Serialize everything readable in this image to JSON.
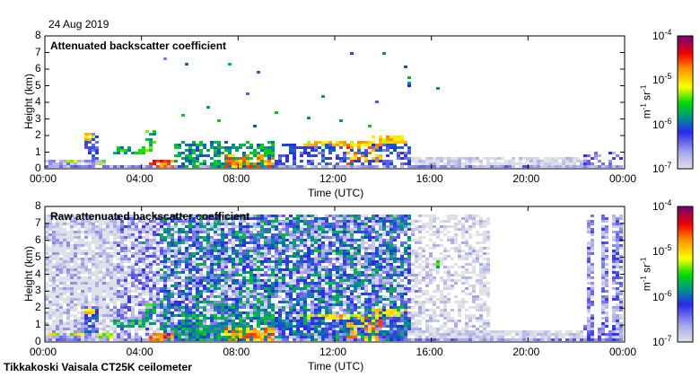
{
  "date": "24 Aug 2019",
  "footer": "Tikkakoski Vaisala CT25K ceilometer",
  "chart_data": [
    {
      "type": "heatmap",
      "title": "Attenuated backscatter coefficient",
      "xlabel": "Time (UTC)",
      "ylabel": "Height (km)",
      "xlim": [
        0,
        24
      ],
      "ylim": [
        0,
        8
      ],
      "xticks": [
        "00:00",
        "04:00",
        "08:00",
        "12:00",
        "16:00",
        "20:00",
        "00:00"
      ],
      "yticks": [
        "0",
        "1",
        "2",
        "3",
        "4",
        "5",
        "6",
        "7",
        "8"
      ],
      "colorbar": {
        "label": "m-1 sr-1",
        "ticks": [
          "10-7",
          "10-6",
          "10-5",
          "10-4"
        ],
        "range_log10": [
          -7,
          -4
        ]
      },
      "regions": [
        {
          "t": [
            0,
            2.6
          ],
          "h": [
            0,
            0.55
          ],
          "log10": -6.7,
          "fill": 0.9
        },
        {
          "t": [
            0,
            1.6
          ],
          "h": [
            0.4,
            0.6
          ],
          "log10": -5.2,
          "fill": 0.6
        },
        {
          "t": [
            1.65,
            2.2
          ],
          "h": [
            0.5,
            2.1
          ],
          "log10": -6.2,
          "fill": 0.6
        },
        {
          "t": [
            1.7,
            2.1
          ],
          "h": [
            1.7,
            2.1
          ],
          "log10": -5.0,
          "fill": 0.6
        },
        {
          "t": [
            2.2,
            2.8
          ],
          "h": [
            0.2,
            0.6
          ],
          "log10": -5.2,
          "fill": 0.5
        },
        {
          "t": [
            2.8,
            4.2
          ],
          "h": [
            0.8,
            1.4
          ],
          "log10": -5.7,
          "fill": 0.7
        },
        {
          "t": [
            4.3,
            5.4
          ],
          "h": [
            0,
            0.6
          ],
          "log10": -4.6,
          "fill": 0.8
        },
        {
          "t": [
            4.2,
            4.6
          ],
          "h": [
            1.0,
            2.3
          ],
          "log10": -5.6,
          "fill": 0.6
        },
        {
          "t": [
            5.3,
            9.5
          ],
          "h": [
            0.1,
            1.6
          ],
          "log10": -5.8,
          "fill": 0.55
        },
        {
          "t": [
            7.5,
            9.5
          ],
          "h": [
            0,
            0.8
          ],
          "log10": -4.8,
          "fill": 0.6
        },
        {
          "t": [
            9.5,
            15.2
          ],
          "h": [
            0.2,
            1.5
          ],
          "log10": -6.2,
          "fill": 0.55
        },
        {
          "t": [
            10.5,
            13.5
          ],
          "h": [
            1.3,
            1.7
          ],
          "log10": -5.0,
          "fill": 0.7
        },
        {
          "t": [
            13.5,
            15.0
          ],
          "h": [
            1.5,
            2.0
          ],
          "log10": -5.0,
          "fill": 0.7
        },
        {
          "t": [
            12.5,
            14.0
          ],
          "h": [
            0,
            1.5
          ],
          "log10": -4.8,
          "fill": 0.35
        },
        {
          "t": [
            15.2,
            22.5
          ],
          "h": [
            0,
            0.7
          ],
          "log10": -6.95,
          "fill": 0.85
        },
        {
          "t": [
            0,
            24
          ],
          "h": [
            0,
            0.25
          ],
          "log10": -6.6,
          "fill": 0.9
        },
        {
          "t": [
            22.3,
            24
          ],
          "h": [
            0,
            1.0
          ],
          "log10": -6.4,
          "fill": 0.4
        },
        {
          "t": [
            16.2,
            16.4
          ],
          "h": [
            4.4,
            5.0
          ],
          "log10": -5.6,
          "fill": 0.8
        },
        {
          "t": [
            15.0,
            15.2
          ],
          "h": [
            5.0,
            5.8
          ],
          "log10": -5.9,
          "fill": 0.5
        }
      ],
      "sparse": {
        "t": [
          3,
          16
        ],
        "h": [
          2,
          7.2
        ],
        "log10": -6.0,
        "density": 0.004
      }
    },
    {
      "type": "heatmap",
      "title": "Raw attenuated backscatter coefficient",
      "xlabel": "Time (UTC)",
      "ylabel": "Height (km)",
      "xlim": [
        0,
        24
      ],
      "ylim": [
        0,
        8
      ],
      "xticks": [
        "00:00",
        "04:00",
        "08:00",
        "12:00",
        "16:00",
        "20:00",
        "00:00"
      ],
      "yticks": [
        "0",
        "1",
        "2",
        "3",
        "4",
        "5",
        "6",
        "7",
        "8"
      ],
      "colorbar": {
        "label": "m-1 sr-1",
        "ticks": [
          "10-7",
          "10-6",
          "10-5",
          "10-4"
        ],
        "range_log10": [
          -7,
          -4
        ]
      },
      "noise": [
        {
          "t": [
            0,
            3.0
          ],
          "h": [
            0,
            7.5
          ],
          "log10": -7.0,
          "fill": 0.85,
          "spread": 0.5
        },
        {
          "t": [
            3.0,
            4.8
          ],
          "h": [
            0,
            7.5
          ],
          "log10": -6.7,
          "fill": 0.8,
          "spread": 0.5
        },
        {
          "t": [
            4.8,
            15.2
          ],
          "h": [
            0,
            7.5
          ],
          "log10": -6.3,
          "fill": 0.85,
          "spread": 0.7
        },
        {
          "t": [
            15.2,
            18.5
          ],
          "h": [
            0,
            7.5
          ],
          "log10": -7.0,
          "fill": 0.55,
          "spread": 0.4
        },
        {
          "t": [
            22.5,
            22.8
          ],
          "h": [
            0,
            7.5
          ],
          "log10": -6.6,
          "fill": 0.8,
          "spread": 0.4
        },
        {
          "t": [
            23.0,
            23.3
          ],
          "h": [
            0,
            7.5
          ],
          "log10": -6.6,
          "fill": 0.8,
          "spread": 0.4
        },
        {
          "t": [
            23.5,
            24
          ],
          "h": [
            0,
            7.5
          ],
          "log10": -6.6,
          "fill": 0.8,
          "spread": 0.4
        }
      ],
      "regions_from": "same as attenuated backscatter panel"
    }
  ]
}
